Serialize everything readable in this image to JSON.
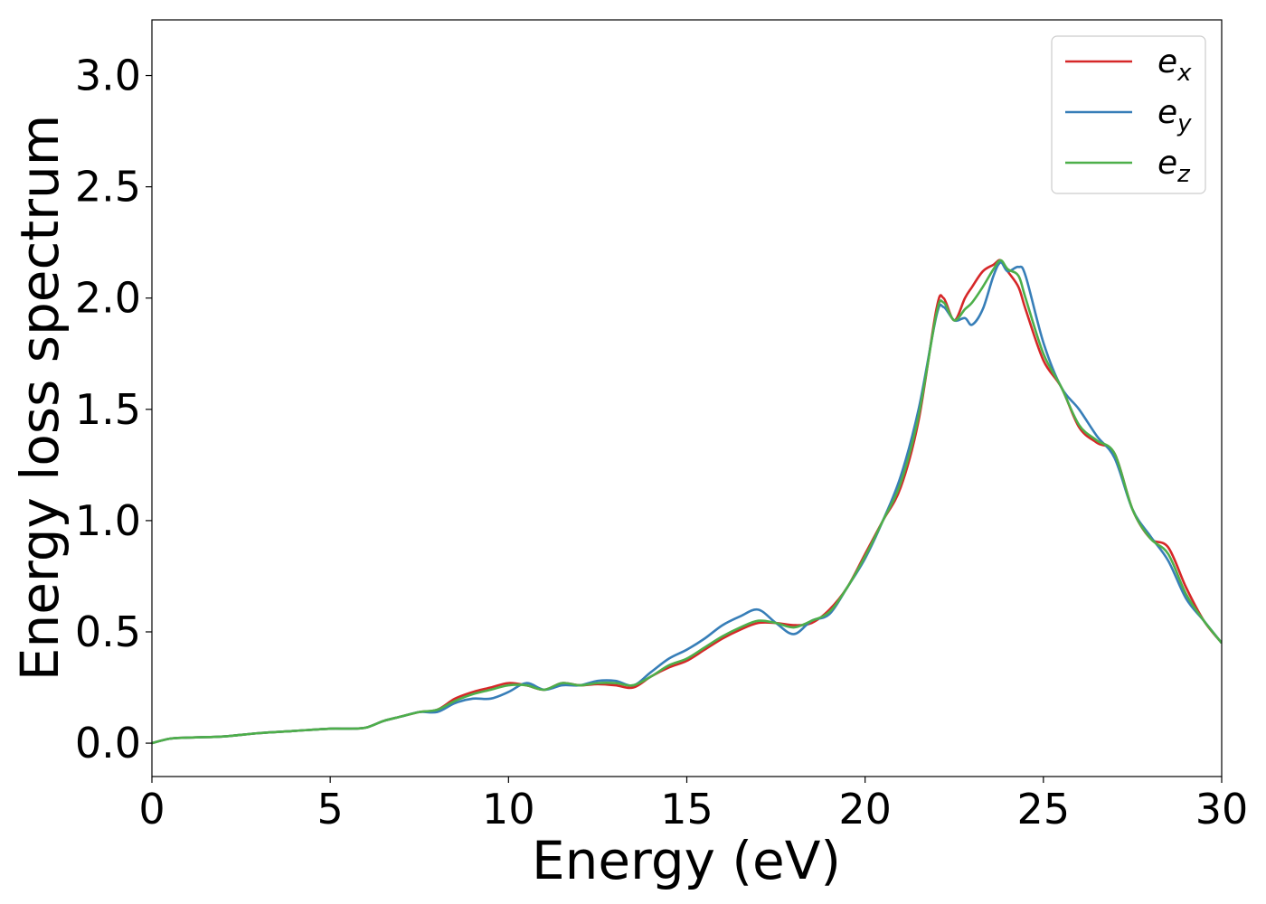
{
  "chart_data": {
    "type": "line",
    "title": "",
    "xlabel": "Energy (eV)",
    "ylabel": "Energy loss spectrum",
    "xlim": [
      0,
      30
    ],
    "ylim": [
      -0.15,
      3.25
    ],
    "xticks": [
      0,
      5,
      10,
      15,
      20,
      25,
      30
    ],
    "xtick_labels": [
      "0",
      "5",
      "10",
      "15",
      "20",
      "25",
      "30"
    ],
    "yticks": [
      0.0,
      0.5,
      1.0,
      1.5,
      2.0,
      2.5,
      3.0
    ],
    "ytick_labels": [
      "0.0",
      "0.5",
      "1.0",
      "1.5",
      "2.0",
      "2.5",
      "3.0"
    ],
    "grid": false,
    "legend_position": "top-right",
    "series": [
      {
        "name": "e_x",
        "legend_base": "e",
        "legend_sub": "x",
        "color": "#d62728",
        "x": [
          0,
          0.5,
          1,
          2,
          3,
          4,
          5,
          5.5,
          6,
          6.5,
          7,
          7.5,
          8,
          8.5,
          9,
          9.5,
          10,
          10.5,
          11,
          11.5,
          12,
          12.5,
          13,
          13.5,
          14,
          14.5,
          15,
          15.5,
          16,
          16.5,
          17,
          17.5,
          18,
          18.5,
          19,
          19.5,
          20,
          20.5,
          21,
          21.5,
          22,
          22.2,
          22.5,
          22.8,
          23,
          23.3,
          23.6,
          23.8,
          24,
          24.3,
          24.5,
          25,
          25.5,
          26,
          26.5,
          27,
          27.5,
          28,
          28.5,
          29,
          29.5,
          30
        ],
        "y": [
          0,
          0.02,
          0.025,
          0.03,
          0.045,
          0.055,
          0.065,
          0.065,
          0.07,
          0.1,
          0.12,
          0.14,
          0.15,
          0.2,
          0.23,
          0.25,
          0.27,
          0.26,
          0.24,
          0.27,
          0.26,
          0.265,
          0.26,
          0.25,
          0.3,
          0.34,
          0.37,
          0.42,
          0.47,
          0.51,
          0.54,
          0.54,
          0.53,
          0.54,
          0.6,
          0.7,
          0.85,
          1.0,
          1.15,
          1.45,
          1.95,
          2.0,
          1.9,
          2.0,
          2.05,
          2.12,
          2.15,
          2.17,
          2.12,
          2.05,
          1.95,
          1.72,
          1.6,
          1.42,
          1.35,
          1.3,
          1.05,
          0.92,
          0.88,
          0.7,
          0.55,
          0.45
        ]
      },
      {
        "name": "e_y",
        "legend_base": "e",
        "legend_sub": "y",
        "color": "#377eb8",
        "x": [
          0,
          0.5,
          1,
          2,
          3,
          4,
          5,
          5.5,
          6,
          6.5,
          7,
          7.5,
          8,
          8.5,
          9,
          9.5,
          10,
          10.5,
          11,
          11.5,
          12,
          12.5,
          13,
          13.5,
          14,
          14.5,
          15,
          15.5,
          16,
          16.5,
          17,
          17.5,
          18,
          18.5,
          19,
          19.5,
          20,
          20.5,
          21,
          21.5,
          22,
          22.2,
          22.5,
          22.8,
          23,
          23.3,
          23.6,
          23.8,
          24,
          24.3,
          24.5,
          25,
          25.5,
          26,
          26.5,
          27,
          27.5,
          28,
          28.5,
          29,
          29.5,
          30
        ],
        "y": [
          0,
          0.02,
          0.025,
          0.03,
          0.045,
          0.055,
          0.065,
          0.065,
          0.07,
          0.1,
          0.12,
          0.14,
          0.14,
          0.18,
          0.2,
          0.2,
          0.23,
          0.27,
          0.24,
          0.26,
          0.26,
          0.28,
          0.28,
          0.26,
          0.32,
          0.38,
          0.42,
          0.47,
          0.53,
          0.57,
          0.6,
          0.54,
          0.49,
          0.55,
          0.58,
          0.7,
          0.83,
          1.0,
          1.2,
          1.5,
          1.92,
          1.96,
          1.9,
          1.91,
          1.88,
          1.95,
          2.1,
          2.16,
          2.12,
          2.14,
          2.1,
          1.8,
          1.6,
          1.5,
          1.38,
          1.28,
          1.05,
          0.93,
          0.82,
          0.65,
          0.55,
          0.45
        ]
      },
      {
        "name": "e_z",
        "legend_base": "e",
        "legend_sub": "z",
        "color": "#4daf4a",
        "x": [
          0,
          0.5,
          1,
          2,
          3,
          4,
          5,
          5.5,
          6,
          6.5,
          7,
          7.5,
          8,
          8.5,
          9,
          9.5,
          10,
          10.5,
          11,
          11.5,
          12,
          12.5,
          13,
          13.5,
          14,
          14.5,
          15,
          15.5,
          16,
          16.5,
          17,
          17.5,
          18,
          18.5,
          19,
          19.5,
          20,
          20.5,
          21,
          21.5,
          22,
          22.2,
          22.5,
          22.8,
          23,
          23.3,
          23.6,
          23.8,
          24,
          24.3,
          24.5,
          25,
          25.5,
          26,
          26.5,
          27,
          27.5,
          28,
          28.5,
          29,
          29.5,
          30
        ],
        "y": [
          0,
          0.02,
          0.025,
          0.03,
          0.045,
          0.055,
          0.065,
          0.065,
          0.07,
          0.1,
          0.12,
          0.14,
          0.15,
          0.19,
          0.22,
          0.24,
          0.26,
          0.26,
          0.24,
          0.27,
          0.26,
          0.27,
          0.27,
          0.26,
          0.3,
          0.35,
          0.38,
          0.43,
          0.48,
          0.52,
          0.55,
          0.54,
          0.52,
          0.55,
          0.59,
          0.7,
          0.84,
          1.0,
          1.17,
          1.47,
          1.93,
          1.98,
          1.9,
          1.95,
          1.98,
          2.05,
          2.13,
          2.17,
          2.13,
          2.1,
          2.0,
          1.75,
          1.6,
          1.43,
          1.36,
          1.3,
          1.05,
          0.92,
          0.85,
          0.67,
          0.55,
          0.45
        ]
      }
    ]
  }
}
